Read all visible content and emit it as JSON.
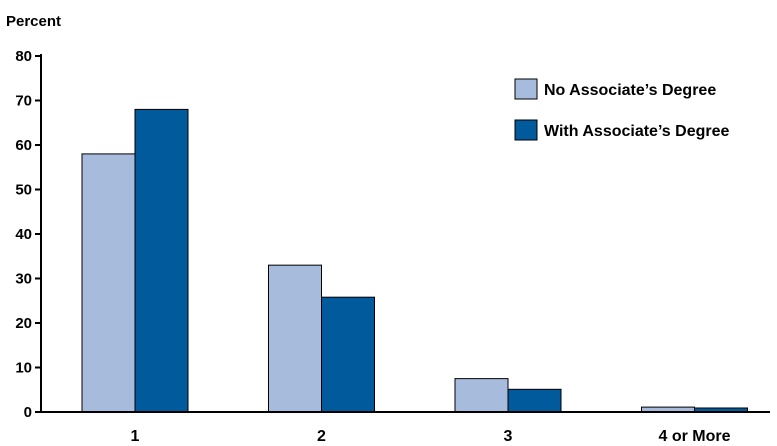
{
  "chart_data": {
    "type": "bar",
    "title": "",
    "ylabel": "Percent",
    "xlabel": "",
    "ylim": [
      0,
      80
    ],
    "yticks": [
      0,
      10,
      20,
      30,
      40,
      50,
      60,
      70,
      80
    ],
    "grid": false,
    "legend_position": "top-right",
    "categories": [
      "1",
      "2",
      "3",
      "4 or More"
    ],
    "series": [
      {
        "name": "No Associate’s Degree",
        "color": "#a7bcdc",
        "values": [
          58,
          33,
          7.5,
          1.1
        ]
      },
      {
        "name": "With Associate’s Degree",
        "color": "#005a9c",
        "values": [
          68,
          25.8,
          5.1,
          0.9
        ]
      }
    ]
  }
}
